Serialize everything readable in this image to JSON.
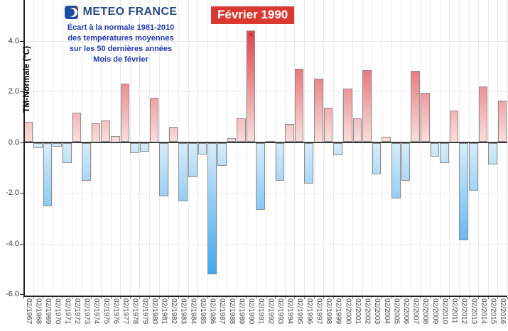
{
  "header": {
    "brand": "METEO FRANCE",
    "subtitle_lines": [
      "Écart à la normale 1981-2010",
      "des températures moyennes",
      "sur les 50 dernières années",
      "Mois de février"
    ]
  },
  "annotation": {
    "label": "Février 1990"
  },
  "chart_data": {
    "type": "bar",
    "title": "Écart à la normale 1981-2010 des températures moyennes sur les 50 dernières années — Mois de février",
    "ylabel": "TM-Normale (°C)",
    "xlabel": "",
    "categories": [
      "02/1967",
      "02/1968",
      "02/1969",
      "02/1970",
      "02/1971",
      "02/1972",
      "02/1973",
      "02/1974",
      "02/1975",
      "02/1976",
      "02/1977",
      "02/1978",
      "02/1979",
      "02/1980",
      "02/1981",
      "02/1982",
      "02/1983",
      "02/1984",
      "02/1985",
      "02/1986",
      "02/1987",
      "02/1988",
      "02/1989",
      "02/1990",
      "02/1991",
      "02/1992",
      "02/1993",
      "02/1994",
      "02/1995",
      "02/1996",
      "02/1997",
      "02/1998",
      "02/1999",
      "02/2000",
      "02/2001",
      "02/2002",
      "02/2003",
      "02/2004",
      "02/2005",
      "02/2006",
      "02/2007",
      "02/2008",
      "02/2009",
      "02/2010",
      "02/2011",
      "02/2012",
      "02/2013",
      "02/2014",
      "02/2015",
      "02/2016"
    ],
    "values": [
      0.8,
      -0.2,
      -2.5,
      -0.15,
      -0.8,
      1.15,
      -1.5,
      0.75,
      0.85,
      0.25,
      2.3,
      -0.4,
      -0.35,
      1.75,
      -2.1,
      0.6,
      -2.3,
      -1.35,
      -0.45,
      -5.2,
      -0.9,
      0.15,
      0.95,
      4.4,
      -2.65,
      0.05,
      -1.5,
      0.7,
      2.9,
      -1.6,
      2.5,
      1.35,
      -0.5,
      2.1,
      0.95,
      2.85,
      -1.25,
      0.2,
      -2.2,
      -1.5,
      2.8,
      1.95,
      -0.55,
      -0.8,
      1.25,
      -3.85,
      -1.9,
      2.2,
      -0.85,
      1.65
    ],
    "yticks": [
      4.0,
      2.0,
      0.0,
      -2.0,
      -4.0,
      -6.0
    ],
    "ytick_labels": [
      "4.0",
      "2.0",
      "0.0",
      "-2.0",
      "-4.0",
      "-6.0"
    ],
    "ylim": [
      -6.05,
      5.65
    ],
    "grid": true,
    "legend": "none",
    "highlight": {
      "category": "02/1990",
      "label": "Février 1990"
    },
    "colors": {
      "positive_max": "#e0464e",
      "positive_base": "#fadddd",
      "negative_max": "#3fa8ee",
      "negative_base": "#d6ecfa",
      "bar_border": "#8d8d8d",
      "annotation_bg": "#db3832",
      "annotation_text": "#ffffff",
      "brand_blue": "#2a4a80",
      "subtitle_blue": "#2538ac"
    }
  }
}
